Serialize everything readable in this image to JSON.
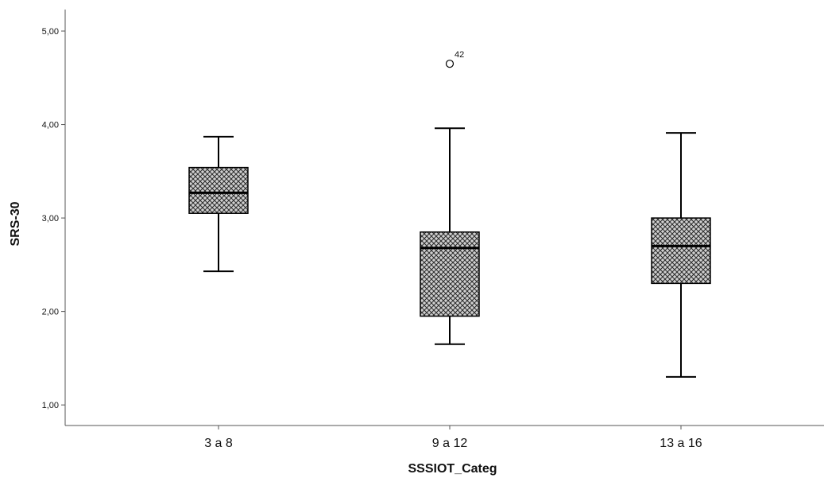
{
  "chart_data": {
    "type": "box",
    "title": "",
    "xlabel": "SSSIOT_Categ",
    "ylabel": "SRS-30",
    "ylim": [
      0.78,
      5.23
    ],
    "yticks": [
      1.0,
      2.0,
      3.0,
      4.0,
      5.0
    ],
    "ytick_labels": [
      "1,00",
      "2,00",
      "3,00",
      "4,00",
      "5,00"
    ],
    "grid": false,
    "categories": [
      "3 a 8",
      "9 a 12",
      "13 a 16"
    ],
    "boxes": [
      {
        "category": "3 a 8",
        "whisker_low": 2.43,
        "q1": 3.05,
        "median": 3.27,
        "q3": 3.54,
        "whisker_high": 3.87,
        "outliers": []
      },
      {
        "category": "9 a 12",
        "whisker_low": 1.65,
        "q1": 1.95,
        "median": 2.68,
        "q3": 2.85,
        "whisker_high": 3.96,
        "outliers": [
          {
            "value": 4.65,
            "label": "42"
          }
        ]
      },
      {
        "category": "13 a 16",
        "whisker_low": 1.3,
        "q1": 2.3,
        "median": 2.7,
        "q3": 3.0,
        "whisker_high": 3.91,
        "outliers": []
      }
    ],
    "box_fill": "crosshatch",
    "colors": {
      "box_fill": "#cfcfcf",
      "hatch": "#2b2b2b",
      "stroke": "#000000",
      "axis": "#555555",
      "background": "#ffffff"
    }
  }
}
